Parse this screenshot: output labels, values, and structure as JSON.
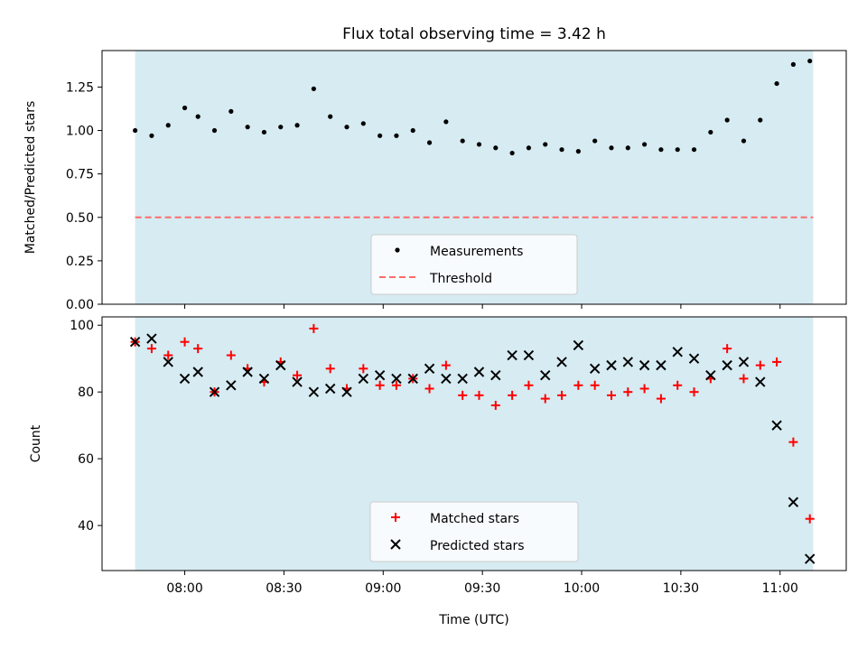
{
  "title": "Flux total observing time = 3.42 h",
  "colors": {
    "span_fill": "#add8e6",
    "measurement": "#000000",
    "threshold": "#ff6b6b",
    "matched": "#ff0000",
    "predicted": "#000000"
  },
  "chart_data": [
    {
      "type": "scatter",
      "ylabel": "Matched/Predicted stars",
      "ylim": [
        0,
        1.46
      ],
      "yticks": [
        0.0,
        0.25,
        0.5,
        0.75,
        1.0,
        1.25
      ],
      "ytick_labels": [
        "0.00",
        "0.25",
        "0.50",
        "0.75",
        "1.00",
        "1.25"
      ],
      "xlim": [
        "07:35",
        "11:20"
      ],
      "shaded_span": [
        "07:45",
        "11:10"
      ],
      "threshold": 0.5,
      "legend": {
        "position": "bottom-center",
        "entries": [
          "Measurements",
          "Threshold"
        ]
      },
      "series": [
        {
          "name": "Measurements",
          "marker": "dot",
          "x": [
            "07:45",
            "07:50",
            "07:55",
            "08:00",
            "08:04",
            "08:09",
            "08:14",
            "08:19",
            "08:24",
            "08:29",
            "08:34",
            "08:39",
            "08:44",
            "08:49",
            "08:54",
            "08:59",
            "09:04",
            "09:09",
            "09:14",
            "09:19",
            "09:24",
            "09:29",
            "09:34",
            "09:39",
            "09:44",
            "09:49",
            "09:54",
            "09:59",
            "10:04",
            "10:09",
            "10:14",
            "10:19",
            "10:24",
            "10:29",
            "10:34",
            "10:39",
            "10:44",
            "10:49",
            "10:54",
            "10:59",
            "11:04",
            "11:09"
          ],
          "values": [
            1.0,
            0.97,
            1.03,
            1.13,
            1.08,
            1.0,
            1.11,
            1.02,
            0.99,
            1.02,
            1.03,
            1.24,
            1.08,
            1.02,
            1.04,
            0.97,
            0.97,
            1.0,
            0.93,
            1.05,
            0.94,
            0.92,
            0.9,
            0.87,
            0.9,
            0.92,
            0.89,
            0.88,
            0.94,
            0.9,
            0.9,
            0.92,
            0.89,
            0.89,
            0.89,
            0.99,
            1.06,
            0.94,
            1.06,
            1.27,
            1.38,
            1.4
          ]
        },
        {
          "name": "Threshold",
          "marker": "dashed-line",
          "values": [
            0.5
          ]
        }
      ]
    },
    {
      "type": "scatter",
      "xlabel": "Time (UTC)",
      "ylabel": "Count",
      "ylim": [
        26.5,
        102.5
      ],
      "yticks": [
        40,
        60,
        80,
        100
      ],
      "ytick_labels": [
        "40",
        "60",
        "80",
        "100"
      ],
      "xlim": [
        "07:35",
        "11:20"
      ],
      "xticks": [
        "08:00",
        "08:30",
        "09:00",
        "09:30",
        "10:00",
        "10:30",
        "11:00"
      ],
      "shaded_span": [
        "07:45",
        "11:10"
      ],
      "legend": {
        "position": "bottom-center",
        "entries": [
          "Matched stars",
          "Predicted stars"
        ]
      },
      "series": [
        {
          "name": "Matched stars",
          "marker": "plus",
          "x": [
            "07:45",
            "07:50",
            "07:55",
            "08:00",
            "08:04",
            "08:09",
            "08:14",
            "08:19",
            "08:24",
            "08:29",
            "08:34",
            "08:39",
            "08:44",
            "08:49",
            "08:54",
            "08:59",
            "09:04",
            "09:09",
            "09:14",
            "09:19",
            "09:24",
            "09:29",
            "09:34",
            "09:39",
            "09:44",
            "09:49",
            "09:54",
            "09:59",
            "10:04",
            "10:09",
            "10:14",
            "10:19",
            "10:24",
            "10:29",
            "10:34",
            "10:39",
            "10:44",
            "10:49",
            "10:54",
            "10:59",
            "11:04",
            "11:09"
          ],
          "values": [
            95,
            93,
            91,
            95,
            93,
            80,
            91,
            87,
            83,
            89,
            85,
            99,
            87,
            81,
            87,
            82,
            82,
            84,
            81,
            88,
            79,
            79,
            76,
            79,
            82,
            78,
            79,
            82,
            82,
            79,
            80,
            81,
            78,
            82,
            80,
            84,
            93,
            84,
            88,
            89,
            65,
            42
          ]
        },
        {
          "name": "Predicted stars",
          "marker": "x",
          "x": [
            "07:45",
            "07:50",
            "07:55",
            "08:00",
            "08:04",
            "08:09",
            "08:14",
            "08:19",
            "08:24",
            "08:29",
            "08:34",
            "08:39",
            "08:44",
            "08:49",
            "08:54",
            "08:59",
            "09:04",
            "09:09",
            "09:14",
            "09:19",
            "09:24",
            "09:29",
            "09:34",
            "09:39",
            "09:44",
            "09:49",
            "09:54",
            "09:59",
            "10:04",
            "10:09",
            "10:14",
            "10:19",
            "10:24",
            "10:29",
            "10:34",
            "10:39",
            "10:44",
            "10:49",
            "10:54",
            "10:59",
            "11:04",
            "11:09"
          ],
          "values": [
            95,
            96,
            89,
            84,
            86,
            80,
            82,
            86,
            84,
            88,
            83,
            80,
            81,
            80,
            84,
            85,
            84,
            84,
            87,
            84,
            84,
            86,
            85,
            91,
            91,
            85,
            89,
            94,
            87,
            88,
            89,
            88,
            88,
            92,
            90,
            85,
            88,
            89,
            83,
            70,
            47,
            30
          ]
        }
      ]
    }
  ]
}
